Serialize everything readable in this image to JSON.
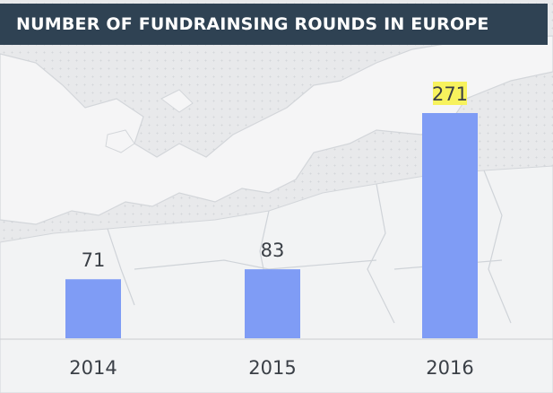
{
  "chart_data": {
    "type": "bar",
    "title": "NUMBER OF FUNDRAINSING ROUNDS IN EUROPE",
    "categories": [
      "2014",
      "2015",
      "2016"
    ],
    "values": [
      71,
      83,
      271
    ],
    "xlabel": "",
    "ylabel": "",
    "ylim": [
      0,
      271
    ],
    "grid": false,
    "legend": "none",
    "highlighted_value": "271"
  },
  "colors": {
    "bar": "#7f9cf5",
    "title_background": "#2f4253",
    "title_text": "#ffffff",
    "label_text": "#3a3f46",
    "highlight": "#f7f25d",
    "axis_line": "#c9ccd1",
    "map_land": "#f4f4f5",
    "map_borders": "#cdd1d6"
  }
}
